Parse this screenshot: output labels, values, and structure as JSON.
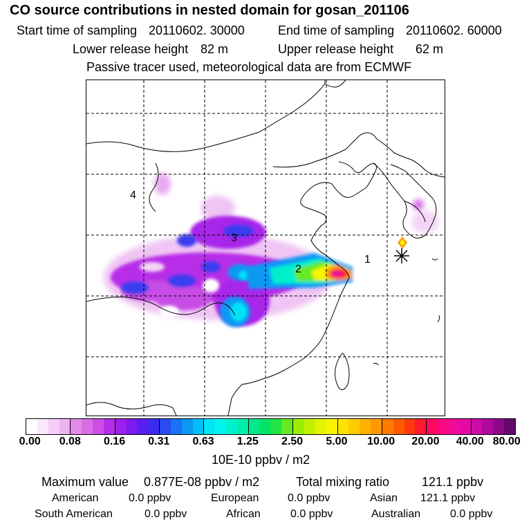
{
  "header": {
    "title": "CO  source contributions in nested domain for gosan_201106",
    "start_label": "Start time of sampling",
    "start_value": "20110602. 30000",
    "end_label": "End time of sampling",
    "end_value": "20110602. 60000",
    "lower_label": "Lower release height",
    "lower_value": "82 m",
    "upper_label": "Upper release height",
    "upper_value": "62 m",
    "note": "Passive tracer used, meteorological data are from ECMWF"
  },
  "map": {
    "region_labels": [
      "1",
      "2",
      "3",
      "4"
    ],
    "receptor": "gosan"
  },
  "legend": {
    "ticks": [
      "0.00",
      "0.08",
      "0.16",
      "0.31",
      "0.63",
      "1.25",
      "2.50",
      "5.00",
      "10.00",
      "20.00",
      "40.00",
      "80.00"
    ],
    "colors": [
      [
        "#ffffff",
        "#fbe6fb",
        "#f5cdf5",
        "#efb4ef"
      ],
      [
        "#e38ae8",
        "#d86ee6",
        "#cc4ee6",
        "#b42ee8"
      ],
      [
        "#9a20ec",
        "#7a1cf0",
        "#5a1ef2",
        "#3a2cf0"
      ],
      [
        "#2a4cf2",
        "#1a72f4",
        "#0a98f4",
        "#00bef6"
      ],
      [
        "#00e4f6",
        "#00f4ee",
        "#00f0cc",
        "#00eeaa"
      ],
      [
        "#00e888",
        "#00e466",
        "#22e244",
        "#66e822"
      ],
      [
        "#99ee00",
        "#c4f000",
        "#e4f400",
        "#f8f400"
      ],
      [
        "#ffe400",
        "#ffcc00",
        "#ffb200",
        "#ff9800"
      ],
      [
        "#ff7a00",
        "#ff5a00",
        "#ff3a10",
        "#ff1a30"
      ],
      [
        "#ff0a60",
        "#f80a80",
        "#f00a98",
        "#e40aa8"
      ],
      [
        "#cc0aa8",
        "#b0089a",
        "#8c0888",
        "#640a6a"
      ]
    ],
    "unit": "10E-10 ppbv / m2"
  },
  "stats": {
    "max_label": "Maximum value",
    "max_value": "0.877E-08 ppbv / m2",
    "total_label": "Total mixing ratio",
    "total_value": "121.1 ppbv",
    "sources": [
      {
        "name": "American",
        "value": "0.0 ppbv"
      },
      {
        "name": "European",
        "value": "0.0 ppbv"
      },
      {
        "name": "Asian",
        "value": "121.1 ppbv"
      },
      {
        "name": "South American",
        "value": "0.0 ppbv"
      },
      {
        "name": "African",
        "value": "0.0 ppbv"
      },
      {
        "name": "Australian",
        "value": "0.0 ppbv"
      }
    ]
  }
}
